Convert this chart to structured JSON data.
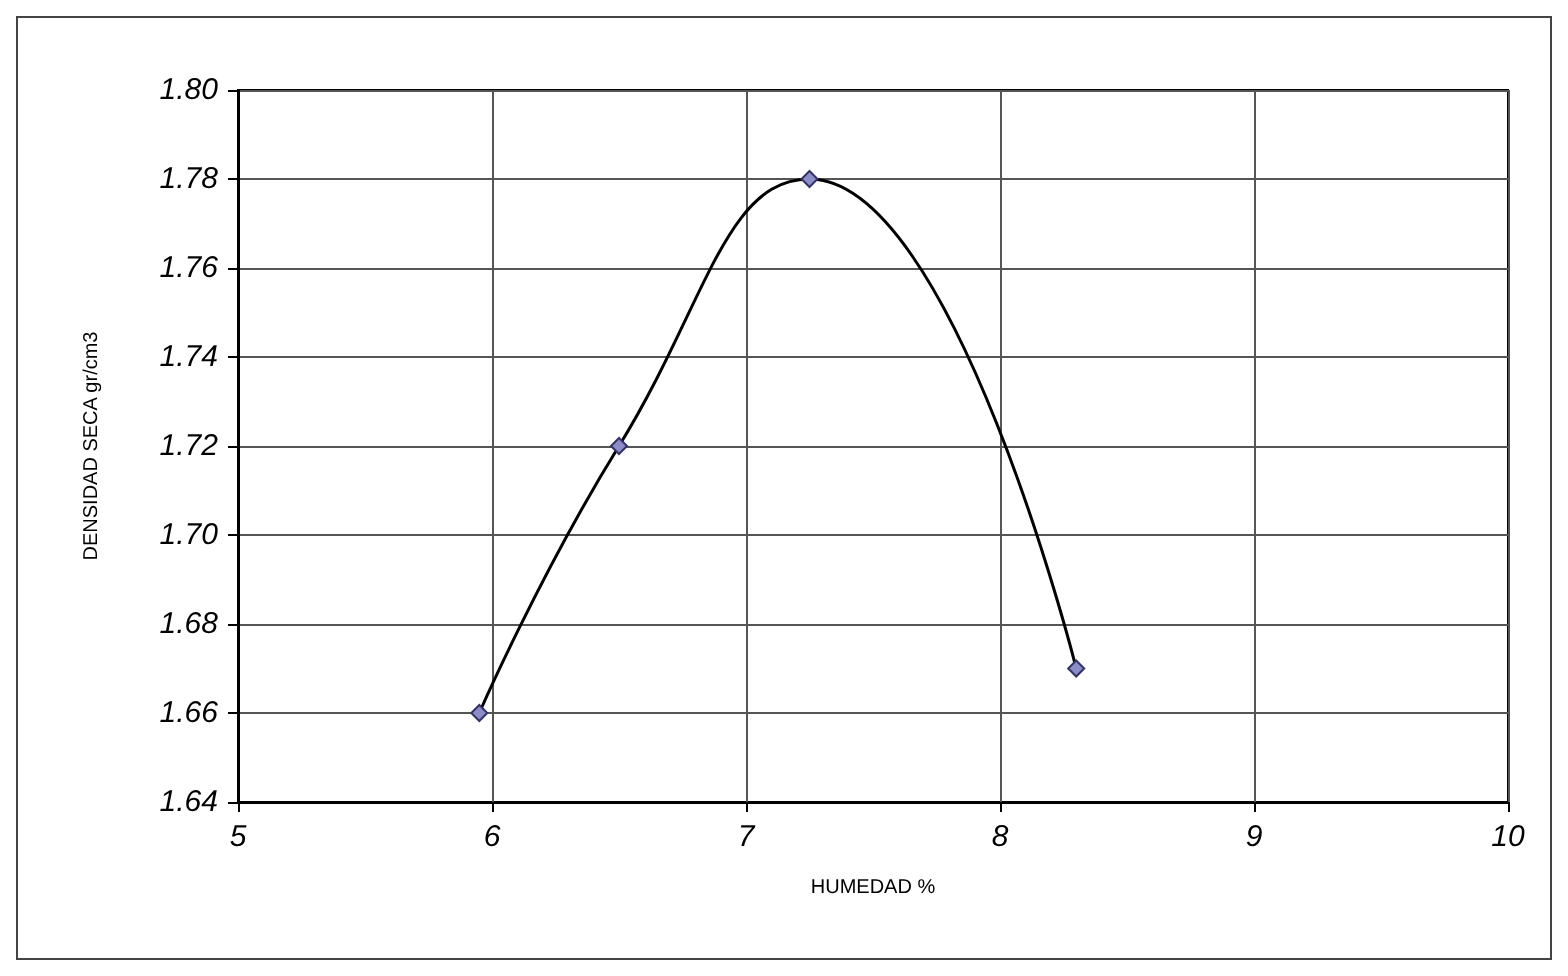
{
  "chart_data": {
    "type": "line",
    "xlabel": "HUMEDAD %",
    "ylabel": "DENSIDAD SECA gr/cm3",
    "x": [
      5.95,
      6.5,
      7.25,
      8.3
    ],
    "series": [
      {
        "color": "#000000",
        "values": [
          1.66,
          1.72,
          1.78,
          1.67
        ]
      }
    ],
    "marker": "diamond",
    "line_style": "solid",
    "grid": true,
    "xlim": [
      5,
      10
    ],
    "xticks": [
      5,
      6,
      7,
      8,
      9,
      10
    ],
    "ylim": [
      1.64,
      1.8
    ],
    "yticks": [
      {
        "value": 1.64,
        "label": "1.64"
      },
      {
        "value": 1.66,
        "label": "1.66"
      },
      {
        "value": 1.68,
        "label": "1.68"
      },
      {
        "value": 1.7,
        "label": "1.70"
      },
      {
        "value": 1.72,
        "label": "1.72"
      },
      {
        "value": 1.74,
        "label": "1.74"
      },
      {
        "value": 1.76,
        "label": "1.76"
      },
      {
        "value": 1.78,
        "label": "1.78"
      },
      {
        "value": 1.8,
        "label": "1.80"
      }
    ]
  }
}
